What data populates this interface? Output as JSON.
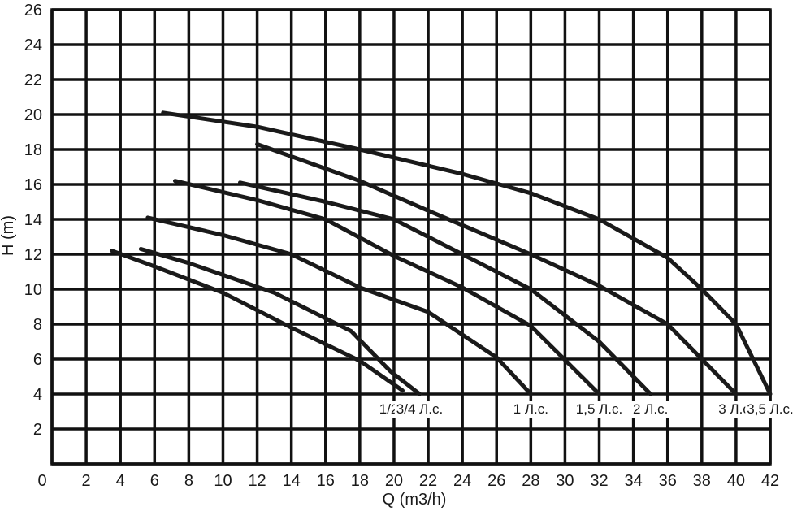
{
  "chart_data": {
    "type": "line",
    "title": "",
    "xlabel": "Q (m3/h)",
    "ylabel": "H (m)",
    "xlim": [
      0,
      42
    ],
    "ylim": [
      0,
      26
    ],
    "xticks": [
      0,
      2,
      4,
      6,
      8,
      10,
      12,
      14,
      16,
      18,
      20,
      22,
      24,
      26,
      28,
      30,
      32,
      34,
      36,
      38,
      40,
      42
    ],
    "yticks": [
      2,
      4,
      6,
      8,
      10,
      12,
      14,
      16,
      18,
      20,
      22,
      24,
      26
    ],
    "grid": true,
    "series": [
      {
        "name": "1/2 Л.с.",
        "points": [
          [
            3.5,
            12.2
          ],
          [
            6,
            11.3
          ],
          [
            10,
            9.8
          ],
          [
            14,
            7.8
          ],
          [
            18,
            5.9
          ],
          [
            20.5,
            4.2
          ]
        ]
      },
      {
        "name": "3/4 Л.с.",
        "points": [
          [
            5.2,
            12.3
          ],
          [
            8,
            11.5
          ],
          [
            13,
            9.8
          ],
          [
            17.5,
            7.6
          ],
          [
            19.8,
            5.3
          ],
          [
            21.5,
            4.0
          ]
        ]
      },
      {
        "name": "1 Л.с.",
        "points": [
          [
            5.6,
            14.1
          ],
          [
            10,
            13.1
          ],
          [
            14,
            12.0
          ],
          [
            18,
            10.1
          ],
          [
            22,
            8.7
          ],
          [
            26,
            6.1
          ],
          [
            28,
            4.0
          ]
        ]
      },
      {
        "name": "1,5 Л.с.",
        "points": [
          [
            7.2,
            16.2
          ],
          [
            12,
            15.1
          ],
          [
            16,
            14.0
          ],
          [
            20,
            11.9
          ],
          [
            24,
            10.1
          ],
          [
            28,
            7.9
          ],
          [
            32,
            4.0
          ]
        ]
      },
      {
        "name": "2 Л.с.",
        "points": [
          [
            11,
            16.1
          ],
          [
            16,
            15.0
          ],
          [
            20,
            14.0
          ],
          [
            24,
            12.0
          ],
          [
            28,
            10.0
          ],
          [
            32,
            7.0
          ],
          [
            35,
            4.0
          ]
        ]
      },
      {
        "name": "3 Л.с.",
        "points": [
          [
            12,
            18.3
          ],
          [
            18,
            16.2
          ],
          [
            22,
            14.5
          ],
          [
            28,
            12.0
          ],
          [
            32,
            10.2
          ],
          [
            36,
            8.0
          ],
          [
            40,
            4.0
          ]
        ]
      },
      {
        "name": "3,5 Л.с.",
        "points": [
          [
            6.5,
            20.1
          ],
          [
            12,
            19.3
          ],
          [
            18,
            18.0
          ],
          [
            24,
            16.6
          ],
          [
            28,
            15.5
          ],
          [
            32,
            14.0
          ],
          [
            36,
            11.8
          ],
          [
            38,
            10.0
          ],
          [
            40,
            8.0
          ],
          [
            42,
            4.0
          ]
        ]
      }
    ]
  }
}
